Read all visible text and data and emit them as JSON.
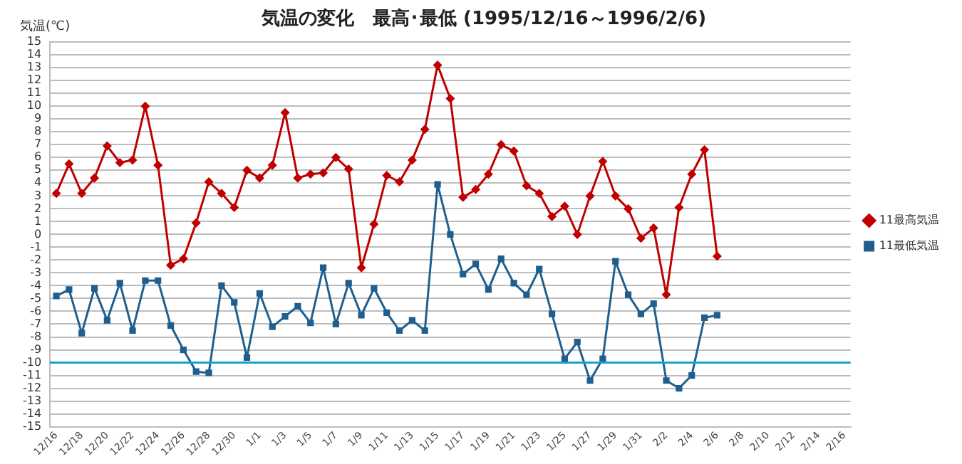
{
  "chart_data": {
    "type": "line",
    "title": "気温の変化　最高･最低 (1995/12/16～1996/2/6)",
    "ylabel": "気温(℃)",
    "categories": [
      "12/16",
      null,
      "12/18",
      null,
      "12/20",
      null,
      "12/22",
      null,
      "12/24",
      null,
      "12/26",
      null,
      "12/28",
      null,
      "12/30",
      null,
      "1/1",
      null,
      "1/3",
      null,
      "1/5",
      null,
      "1/7",
      null,
      "1/9",
      null,
      "1/11",
      null,
      "1/13",
      null,
      "1/15",
      null,
      "1/17",
      null,
      "1/19",
      null,
      "1/21",
      null,
      "1/23",
      null,
      "1/25",
      null,
      "1/27",
      null,
      "1/29",
      null,
      "1/31",
      null,
      "2/2",
      null,
      "2/4",
      null,
      "2/6",
      null,
      "2/8",
      null,
      "2/10",
      null,
      "2/12",
      null,
      "2/14",
      null,
      "2/16"
    ],
    "series": [
      {
        "name": "11最高気温",
        "color": "#c00000",
        "marker": "diamond",
        "values": [
          3.2,
          5.5,
          3.2,
          4.4,
          6.9,
          5.6,
          5.8,
          10.0,
          5.4,
          -2.4,
          -1.9,
          0.9,
          4.1,
          3.2,
          2.1,
          5.0,
          4.4,
          5.4,
          9.5,
          4.4,
          4.7,
          4.8,
          6.0,
          5.1,
          -2.6,
          0.8,
          4.6,
          4.1,
          5.8,
          8.2,
          13.2,
          10.6,
          2.9,
          3.5,
          4.7,
          7.0,
          6.5,
          3.8,
          3.2,
          1.4,
          2.2,
          0.0,
          3.0,
          5.7,
          3.0,
          2.0,
          -0.3,
          0.5,
          -4.7,
          2.1,
          4.7,
          6.6,
          -1.7,
          null,
          null,
          null,
          null,
          null,
          null,
          null,
          null,
          null,
          null
        ]
      },
      {
        "name": "11最低気温",
        "color": "#1f5f8f",
        "marker": "square",
        "values": [
          -4.8,
          -4.3,
          -7.7,
          -4.2,
          -6.7,
          -3.8,
          -7.5,
          -3.6,
          -3.6,
          -7.1,
          -9.0,
          -10.7,
          -10.8,
          -4.0,
          -5.3,
          -9.6,
          -4.6,
          -7.2,
          -6.4,
          -5.6,
          -6.9,
          -2.6,
          -7.0,
          -3.8,
          -6.3,
          -4.2,
          -6.1,
          -7.5,
          -6.7,
          -7.5,
          3.9,
          0.0,
          -3.1,
          -2.3,
          -4.3,
          -1.9,
          -3.8,
          -4.7,
          -2.7,
          -6.2,
          -9.7,
          -8.4,
          -11.4,
          -9.7,
          -2.1,
          -4.7,
          -6.2,
          -5.4,
          -11.4,
          -12.0,
          -11.0,
          -6.5,
          -6.3,
          null,
          null,
          null,
          null,
          null,
          null,
          null,
          null,
          null,
          null
        ]
      }
    ],
    "ylim": [
      -15,
      15
    ],
    "yticks": [
      -15,
      -14,
      -13,
      -12,
      -11,
      -10,
      -9,
      -8,
      -7,
      -6,
      -5,
      -4,
      -3,
      -2,
      -1,
      0,
      1,
      2,
      3,
      4,
      5,
      6,
      7,
      8,
      9,
      10,
      11,
      12,
      13,
      14,
      15
    ],
    "ref_lines": [
      {
        "axis": "y",
        "value": -10,
        "color": "#1aa0d0"
      }
    ],
    "grid": "y",
    "legend": "right",
    "line_style": "solid"
  }
}
